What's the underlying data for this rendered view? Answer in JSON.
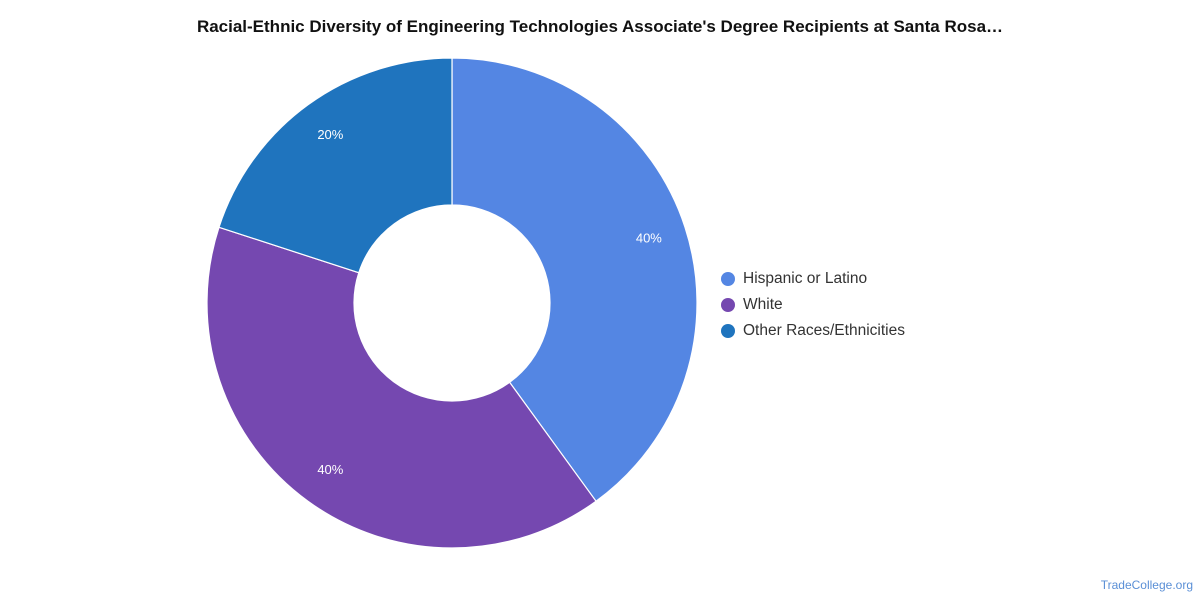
{
  "chart_data": {
    "type": "pie",
    "variant": "donut",
    "title": "Racial-Ethnic Diversity of Engineering Technologies Associate's Degree Recipients at Santa Rosa…",
    "categories": [
      "Hispanic or Latino",
      "White",
      "Other Races/Ethnicities"
    ],
    "values": [
      40,
      40,
      20
    ],
    "value_labels": [
      "40%",
      "40%",
      "20%"
    ],
    "colors": [
      "#5486e3",
      "#7548b0",
      "#1f74be"
    ],
    "legend_position": "right"
  },
  "source": "TradeCollege.org"
}
